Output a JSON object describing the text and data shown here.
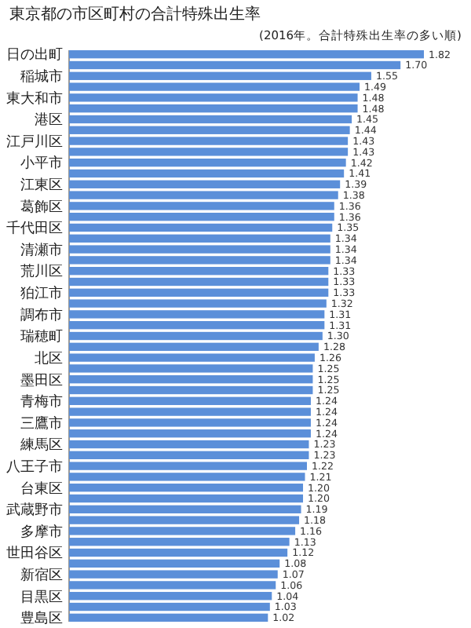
{
  "chart_data": {
    "type": "bar",
    "orientation": "horizontal",
    "title": "東京都の市区町村の合計特殊出生率",
    "subtitle": "(2016年。合計特殊出生率の多い順)",
    "categories": [
      "日の出町",
      null,
      "稲城市",
      null,
      "東大和市",
      null,
      "港区",
      null,
      "江戸川区",
      null,
      "小平市",
      null,
      "江東区",
      null,
      "葛飾区",
      null,
      "千代田区",
      null,
      "清瀬市",
      null,
      "荒川区",
      null,
      "狛江市",
      null,
      "調布市",
      null,
      "瑞穂町",
      null,
      "北区",
      null,
      "墨田区",
      null,
      "青梅市",
      null,
      "三鷹市",
      null,
      "練馬区",
      null,
      "八王子市",
      null,
      "台東区",
      null,
      "武蔵野市",
      null,
      "多摩市",
      null,
      "世田谷区",
      null,
      "新宿区",
      null,
      "目黒区",
      null,
      "豊島区"
    ],
    "values": [
      1.82,
      1.7,
      1.55,
      1.49,
      1.48,
      1.48,
      1.45,
      1.44,
      1.43,
      1.43,
      1.42,
      1.41,
      1.39,
      1.38,
      1.36,
      1.36,
      1.35,
      1.34,
      1.34,
      1.34,
      1.33,
      1.33,
      1.33,
      1.32,
      1.31,
      1.31,
      1.3,
      1.28,
      1.26,
      1.25,
      1.25,
      1.25,
      1.24,
      1.24,
      1.24,
      1.24,
      1.23,
      1.23,
      1.22,
      1.21,
      1.2,
      1.2,
      1.19,
      1.18,
      1.16,
      1.13,
      1.12,
      1.08,
      1.07,
      1.06,
      1.04,
      1.03,
      1.02
    ],
    "value_labels": [
      "1.82",
      "1.70",
      "1.55",
      "1.49",
      "1.48",
      "1.48",
      "1.45",
      "1.44",
      "1.43",
      "1.43",
      "1.42",
      "1.41",
      "1.39",
      "1.38",
      "1.36",
      "1.36",
      "1.35",
      "1.34",
      "1.34",
      "1.34",
      "1.33",
      "1.33",
      "1.33",
      "1.32",
      "1.31",
      "1.31",
      "1.30",
      "1.28",
      "1.26",
      "1.25",
      "1.25",
      "1.25",
      "1.24",
      "1.24",
      "1.24",
      "1.24",
      "1.23",
      "1.23",
      "1.22",
      "1.21",
      "1.20",
      "1.20",
      "1.19",
      "1.18",
      "1.16",
      "1.13",
      "1.12",
      "1.08",
      "1.07",
      "1.06",
      "1.04",
      "1.03",
      "1.02"
    ],
    "color": "#5b8fd9"
  }
}
